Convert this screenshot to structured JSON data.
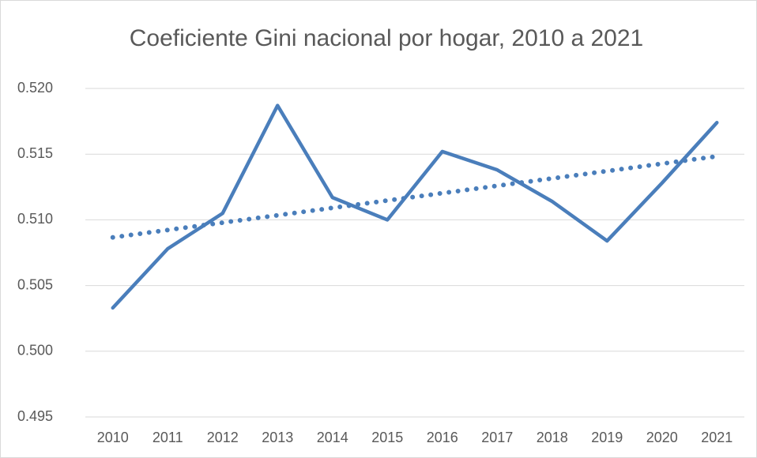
{
  "chart_data": {
    "type": "line",
    "title": "Coeficiente Gini nacional por hogar, 2010 a 2021",
    "categories": [
      "2010",
      "2011",
      "2012",
      "2013",
      "2014",
      "2015",
      "2016",
      "2017",
      "2018",
      "2019",
      "2020",
      "2021"
    ],
    "values": [
      0.5033,
      0.5078,
      0.5105,
      0.5187,
      0.5117,
      0.51,
      0.5152,
      0.5138,
      0.5114,
      0.5084,
      0.5128,
      0.5174
    ],
    "color": "#4a7ebb",
    "trendline": "linear",
    "ylim": [
      0.495,
      0.52
    ],
    "yticks": [
      0.495,
      {
        "value": 0.5,
        "label": "0.500"
      },
      0.505,
      {
        "value": 0.51,
        "label": "0.510"
      },
      0.515,
      {
        "value": 0.52,
        "label": "0.520"
      }
    ],
    "grid": true
  }
}
